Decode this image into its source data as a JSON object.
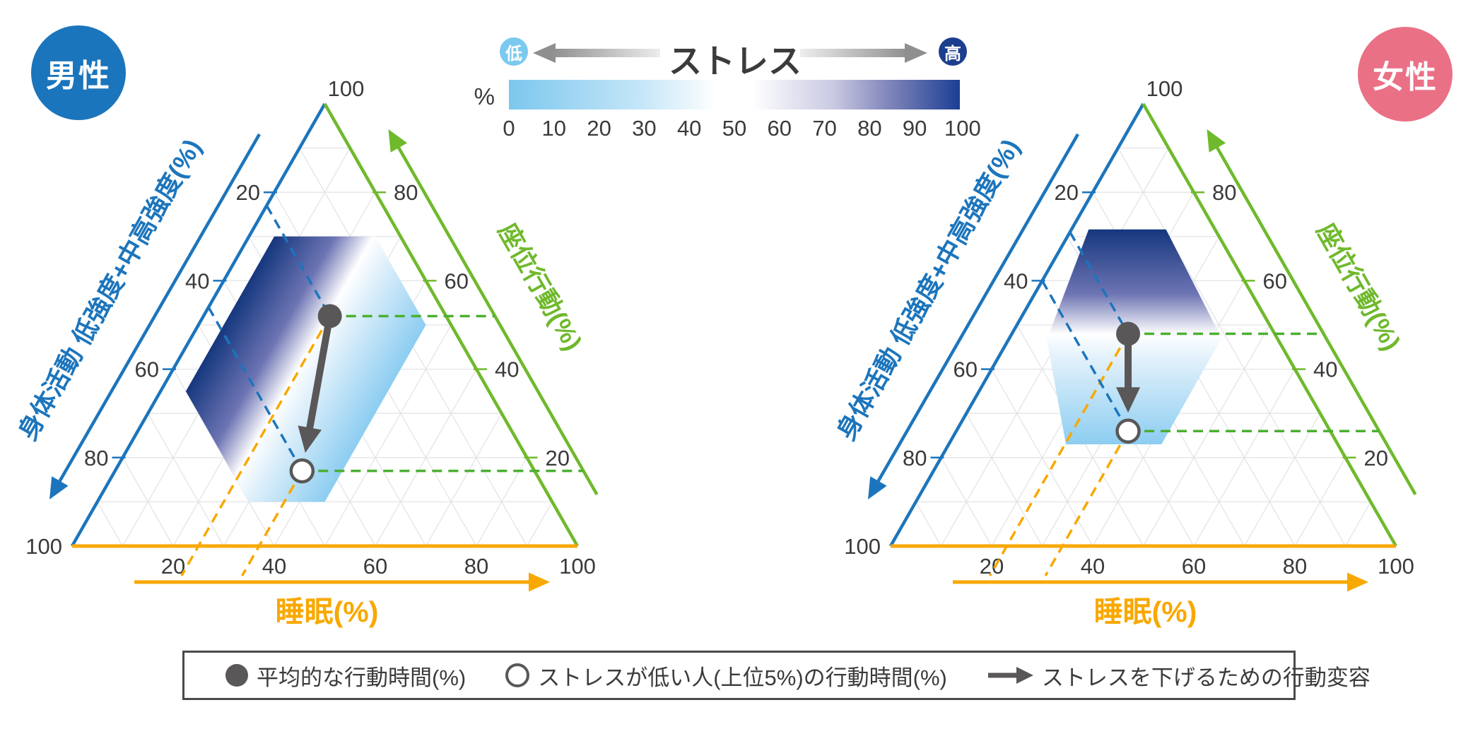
{
  "badges": {
    "male": "男性",
    "female": "女性",
    "male_color": "#1b75bc",
    "female_color": "#ea7086"
  },
  "stress_legend": {
    "title": "ストレス",
    "low": "低",
    "high": "高",
    "low_color": "#7ac9ee",
    "high_color": "#1c3e8f",
    "unit": "%",
    "ticks": [
      0,
      10,
      20,
      30,
      40,
      50,
      60,
      70,
      80,
      90,
      100
    ]
  },
  "legend": {
    "items": [
      {
        "symbol": "filled-circle",
        "label": "平均的な行動時間(%)"
      },
      {
        "symbol": "open-circle",
        "label": "ストレスが低い人(上位5%)の行動時間(%)"
      },
      {
        "symbol": "arrow",
        "label": "ストレスを下げるための行動変容"
      }
    ]
  },
  "colors": {
    "blue_axis": "#1c75bc",
    "green_axis": "#6fb92c",
    "orange_axis": "#f8a800",
    "dash_green": "#4caf32",
    "marker_gray": "#595757",
    "grid": "#e4e4e8",
    "text": "#3a3a3a"
  },
  "chart_data": [
    {
      "type": "ternary",
      "group": "男性",
      "axes": {
        "left": {
          "label": "身体活動 低強度+中高強度(%)",
          "ticks": [
            20,
            40,
            60,
            80
          ],
          "max_label": "100"
        },
        "right": {
          "label": "座位行動(%)",
          "ticks": [
            20,
            40,
            60,
            80
          ],
          "max_label": "100"
        },
        "bottom": {
          "label": "睡眠(%)",
          "ticks": [
            20,
            40,
            60,
            80,
            100
          ]
        }
      },
      "average": {
        "pa": 23,
        "sedentary": 52,
        "sleep": 25
      },
      "low_stress": {
        "pa": 46,
        "sedentary": 17,
        "sleep": 37
      },
      "stress_region_vertices_pa_sed_sleep": [
        [
          25,
          70,
          5
        ],
        [
          5,
          70,
          25
        ],
        [
          5,
          50,
          45
        ],
        [
          45,
          10,
          45
        ],
        [
          60,
          10,
          30
        ],
        [
          60,
          35,
          5
        ]
      ],
      "gradient_contours": "left-edge",
      "gradient_stops": [
        [
          0,
          "#15377e"
        ],
        [
          0.3,
          "#6d74b3"
        ],
        [
          0.49,
          "#ffffff"
        ],
        [
          0.61,
          "#e2f1fb"
        ],
        [
          1,
          "#8ccdf1"
        ]
      ]
    },
    {
      "type": "ternary",
      "group": "女性",
      "axes": {
        "left": {
          "label": "身体活動 低強度+中高強度(%)",
          "ticks": [
            20,
            40,
            60,
            80
          ],
          "max_label": "100"
        },
        "right": {
          "label": "座位行動(%)",
          "ticks": [
            20,
            40,
            60,
            80
          ],
          "max_label": "100"
        },
        "bottom": {
          "label": "睡眠(%)",
          "ticks": [
            20,
            40,
            60,
            80,
            100
          ]
        }
      },
      "average": {
        "pa": 29,
        "sedentary": 48,
        "sleep": 23
      },
      "low_stress": {
        "pa": 40,
        "sedentary": 26,
        "sleep": 34
      },
      "stress_region_vertices_pa_sed_sleep": [
        [
          25,
          71.6,
          3.4
        ],
        [
          9.7,
          71.6,
          18.7
        ],
        [
          11,
          47,
          42
        ],
        [
          34.9,
          23,
          42.1
        ],
        [
          53.8,
          23,
          23.2
        ],
        [
          45.8,
          46.6,
          7.6
        ]
      ],
      "gradient_contours": "horizontal",
      "gradient_stops": [
        [
          0,
          "#15377e"
        ],
        [
          0.3,
          "#6d74b3"
        ],
        [
          0.487,
          "#ffffff"
        ],
        [
          0.6,
          "#e2f1fb"
        ],
        [
          1,
          "#8ccdf1"
        ]
      ]
    }
  ]
}
